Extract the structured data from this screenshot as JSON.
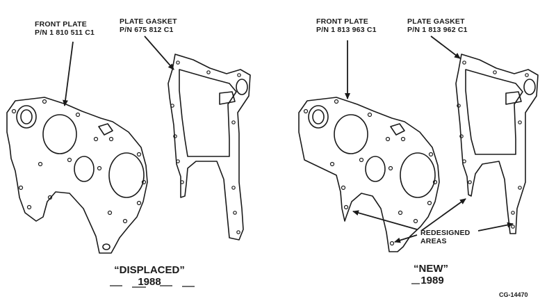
{
  "left_panel": {
    "front_plate": {
      "title": "FRONT PLATE",
      "part_number": "P/N 1 810 511 C1"
    },
    "plate_gasket": {
      "title": "PLATE GASKET",
      "part_number": "P/N 675 812 C1"
    },
    "caption": {
      "label": "“DISPLACED”",
      "year": "1988"
    }
  },
  "right_panel": {
    "front_plate": {
      "title": "FRONT PLATE",
      "part_number": "P/N 1 813 963 C1"
    },
    "plate_gasket": {
      "title": "PLATE GASKET",
      "part_number": "P/N 1 813 962 C1"
    },
    "callout": {
      "line1": "REDESIGNED",
      "line2": "AREAS"
    },
    "caption": {
      "label": "“NEW”",
      "year": "1989"
    }
  },
  "figure_id": "CG-14470"
}
